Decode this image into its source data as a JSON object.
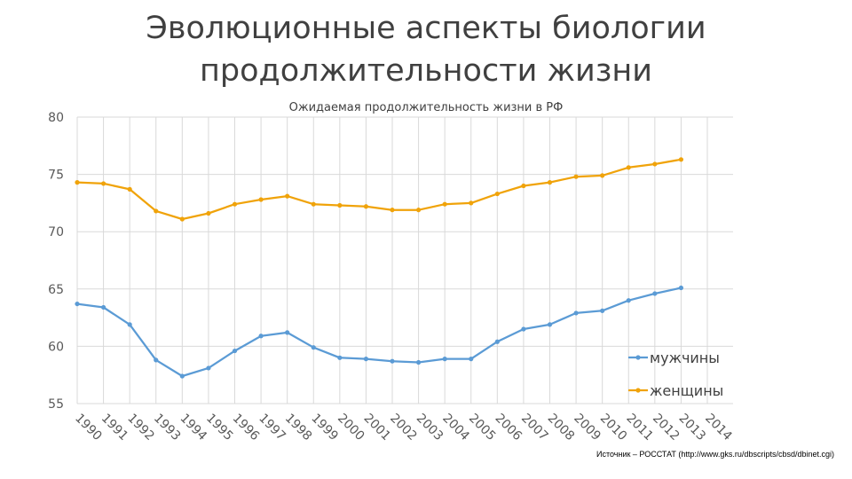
{
  "slide": {
    "title_line1": "Эволюционные аспекты биологии",
    "title_line2": "продолжительности жизни",
    "source": "Источник – РОССТАТ (http://www.gks.ru/dbscripts/cbsd/dbinet.cgi)"
  },
  "chart_data": {
    "type": "line",
    "title": "Ожидаемая продолжительность жизни в РФ",
    "xlabel": "",
    "ylabel": "",
    "categories": [
      "1990",
      "1991",
      "1992",
      "1993",
      "1994",
      "1995",
      "1996",
      "1997",
      "1998",
      "1999",
      "2000",
      "2001",
      "2002",
      "2003",
      "2004",
      "2005",
      "2006",
      "2007",
      "2008",
      "2009",
      "2010",
      "2011",
      "2012",
      "2013",
      "2014"
    ],
    "ylim": [
      55,
      80
    ],
    "yticks": [
      "55",
      "60",
      "65",
      "70",
      "75",
      "80"
    ],
    "grid": true,
    "legend_position": "right",
    "series": [
      {
        "name": "мужчины",
        "color": "#5b9bd5",
        "values": [
          63.7,
          63.4,
          61.9,
          58.8,
          57.4,
          58.1,
          59.6,
          60.9,
          61.2,
          59.9,
          59.0,
          58.9,
          58.7,
          58.6,
          58.9,
          58.9,
          60.4,
          61.5,
          61.9,
          62.9,
          63.1,
          64.0,
          64.6,
          65.1,
          null
        ]
      },
      {
        "name": "женщины",
        "color": "#f0a30a",
        "values": [
          74.3,
          74.2,
          73.7,
          71.8,
          71.1,
          71.6,
          72.4,
          72.8,
          73.1,
          72.4,
          72.3,
          72.2,
          71.9,
          71.9,
          72.4,
          72.5,
          73.3,
          74.0,
          74.3,
          74.8,
          74.9,
          75.6,
          75.9,
          76.3,
          null
        ]
      }
    ]
  }
}
